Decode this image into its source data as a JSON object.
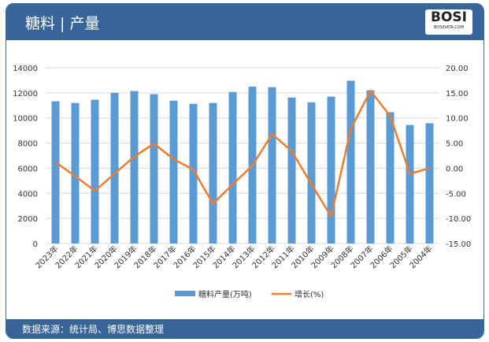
{
  "header": {
    "title": "糖料 | 产量",
    "logo_text": "BOSI",
    "logo_sub": "BOSIDATA.COM"
  },
  "footer": {
    "source": "数据来源：统计局、博思数据整理"
  },
  "colors": {
    "bar": "#5b9bd5",
    "line": "#ed7d31",
    "header": "#376597"
  },
  "chart_data": {
    "type": "bar+line",
    "categories": [
      "2023年",
      "2022年",
      "2021年",
      "2020年",
      "2019年",
      "2018年",
      "2017年",
      "2016年",
      "2015年",
      "2014年",
      "2013年",
      "2012年",
      "2011年",
      "2010年",
      "2009年",
      "2008年",
      "2007年",
      "2006年",
      "2005年",
      "2004年"
    ],
    "series": [
      {
        "name": "糖料产量(万吨)",
        "type": "bar",
        "axis": "left",
        "values": [
          11330,
          11200,
          11450,
          12000,
          12150,
          11900,
          11380,
          11130,
          11200,
          12070,
          12500,
          12450,
          11630,
          11250,
          11700,
          12970,
          12200,
          10460,
          9440,
          9580
        ]
      },
      {
        "name": "增长(%)",
        "type": "line",
        "axis": "right",
        "values": [
          1.2,
          -1.6,
          -4.5,
          -1.1,
          2.3,
          4.9,
          1.8,
          -0.3,
          -7.1,
          -3.2,
          0.5,
          6.8,
          3.4,
          -3.2,
          -9.6,
          7.8,
          15.4,
          10.4,
          -1.1,
          0.0
        ]
      }
    ],
    "yleft": {
      "ylim": [
        0,
        14000
      ],
      "ticks": [
        "0",
        "2000",
        "4000",
        "6000",
        "8000",
        "10000",
        "12000",
        "14000"
      ]
    },
    "yright": {
      "ylim": [
        -15,
        20
      ],
      "ticks": [
        "-15.00",
        "-10.00",
        "-5.00",
        "0.00",
        "5.00",
        "10.00",
        "15.00",
        "20.00"
      ]
    },
    "grid": true,
    "legend": "bottom"
  }
}
